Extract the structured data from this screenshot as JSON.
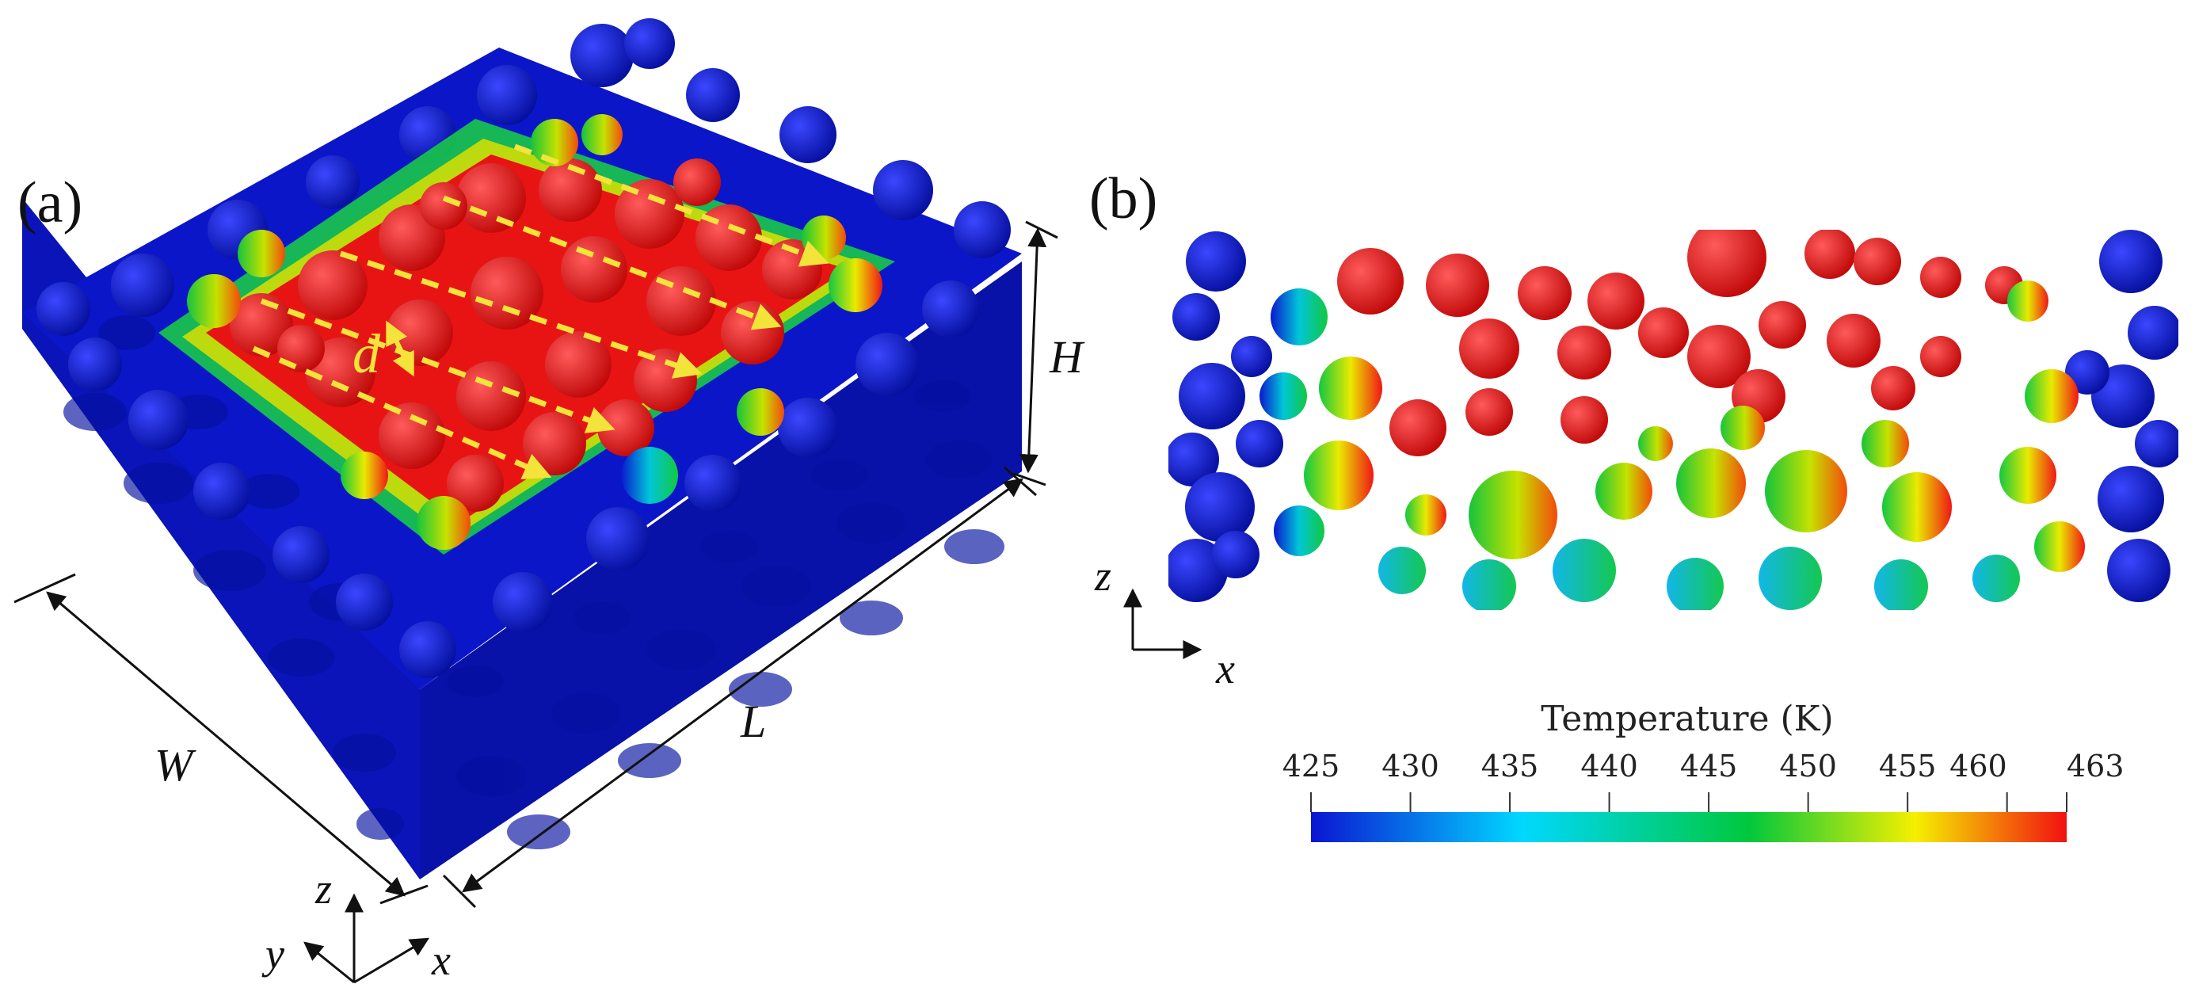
{
  "panel_a": {
    "label": "(a)",
    "dims": {
      "W": "W",
      "L": "L",
      "H": "H"
    },
    "scan_spacing_label": "d",
    "axes": {
      "z": "z",
      "y": "y",
      "x": "x"
    }
  },
  "panel_b": {
    "label": "(b)",
    "axes": {
      "z": "z",
      "x": "x"
    }
  },
  "colorbar": {
    "title": "Temperature (K)",
    "min": 425,
    "max": 463,
    "ticks": [
      "425",
      "430",
      "435",
      "440",
      "445",
      "450",
      "455",
      "460",
      "463"
    ],
    "tick_values": [
      425,
      430,
      435,
      440,
      445,
      450,
      455,
      460,
      463
    ],
    "colors": [
      "#0b15d2",
      "#00d8ff",
      "#00c83c",
      "#f5f000",
      "#f21010"
    ]
  },
  "colors": {
    "cold": "#0b15c8",
    "hot": "#ee1111",
    "scan_path": "#f4e33a"
  }
}
